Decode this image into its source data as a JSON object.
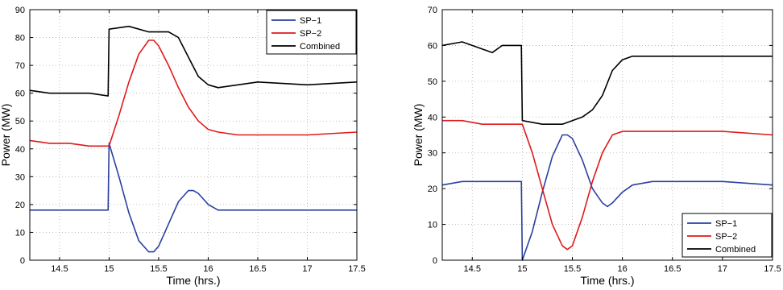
{
  "chart_data": [
    {
      "type": "line",
      "xlabel": "Time (hrs.)",
      "ylabel": "Power (MW)",
      "xlim": [
        14.2,
        17.5
      ],
      "ylim": [
        0,
        90
      ],
      "xticks": [
        14.5,
        15,
        15.5,
        16,
        16.5,
        17,
        17.5
      ],
      "xtick_labels": [
        "14.5",
        "15",
        "15.5",
        "16",
        "16.5",
        "17",
        "17.5"
      ],
      "yticks": [
        0,
        10,
        20,
        30,
        40,
        50,
        60,
        70,
        80,
        90
      ],
      "ytick_labels": [
        "0",
        "10",
        "20",
        "30",
        "40",
        "50",
        "60",
        "70",
        "80",
        "90"
      ],
      "grid": true,
      "legend_position": "top-right",
      "series": [
        {
          "name": "SP−1",
          "color": "#2b3fa0",
          "x": [
            14.2,
            14.4,
            14.6,
            14.8,
            14.99,
            15.0,
            15.1,
            15.2,
            15.3,
            15.4,
            15.45,
            15.5,
            15.6,
            15.7,
            15.8,
            15.85,
            15.9,
            16.0,
            16.1,
            16.5,
            17.0,
            17.5
          ],
          "y": [
            18,
            18,
            18,
            18,
            18,
            42,
            30,
            17,
            7,
            3,
            3,
            5,
            13,
            21,
            25,
            25,
            24,
            20,
            18,
            18,
            18,
            18
          ]
        },
        {
          "name": "SP−2",
          "color": "#e01a1a",
          "x": [
            14.2,
            14.4,
            14.6,
            14.8,
            15.0,
            15.1,
            15.2,
            15.3,
            15.4,
            15.45,
            15.5,
            15.6,
            15.7,
            15.8,
            15.9,
            16.0,
            16.1,
            16.3,
            16.5,
            17.0,
            17.5
          ],
          "y": [
            43,
            42,
            42,
            41,
            41,
            52,
            64,
            74,
            79,
            79,
            77,
            70,
            62,
            55,
            50,
            47,
            46,
            45,
            45,
            45,
            46
          ]
        },
        {
          "name": "Combined",
          "color": "#000000",
          "x": [
            14.2,
            14.4,
            14.6,
            14.8,
            14.99,
            15.0,
            15.2,
            15.4,
            15.6,
            15.7,
            15.8,
            15.9,
            16.0,
            16.1,
            16.3,
            16.5,
            17.0,
            17.5
          ],
          "y": [
            61,
            60,
            60,
            60,
            59,
            83,
            84,
            82,
            82,
            80,
            73,
            66,
            63,
            62,
            63,
            64,
            63,
            64
          ]
        }
      ]
    },
    {
      "type": "line",
      "xlabel": "Time (hrs.)",
      "ylabel": "Power (MW)",
      "xlim": [
        14.2,
        17.5
      ],
      "ylim": [
        0,
        70
      ],
      "xticks": [
        14.5,
        15,
        15.5,
        16,
        16.5,
        17,
        17.5
      ],
      "xtick_labels": [
        "14.5",
        "15",
        "15.5",
        "16",
        "16.5",
        "17",
        "17.5"
      ],
      "yticks": [
        0,
        10,
        20,
        30,
        40,
        50,
        60,
        70
      ],
      "ytick_labels": [
        "0",
        "10",
        "20",
        "30",
        "40",
        "50",
        "60",
        "70"
      ],
      "grid": true,
      "legend_position": "bottom-right",
      "series": [
        {
          "name": "SP−1",
          "color": "#2b3fa0",
          "x": [
            14.2,
            14.4,
            14.6,
            14.8,
            14.99,
            15.0,
            15.1,
            15.2,
            15.3,
            15.4,
            15.45,
            15.5,
            15.6,
            15.7,
            15.8,
            15.85,
            15.9,
            16.0,
            16.1,
            16.3,
            16.5,
            17.0,
            17.5
          ],
          "y": [
            21,
            22,
            22,
            22,
            22,
            0,
            8,
            19,
            29,
            35,
            35,
            34,
            28,
            20,
            16,
            15,
            16,
            19,
            21,
            22,
            22,
            22,
            21
          ]
        },
        {
          "name": "SP−2",
          "color": "#e01a1a",
          "x": [
            14.2,
            14.4,
            14.6,
            14.8,
            15.0,
            15.1,
            15.2,
            15.3,
            15.4,
            15.45,
            15.5,
            15.6,
            15.7,
            15.8,
            15.9,
            16.0,
            16.1,
            16.5,
            17.0,
            17.5
          ],
          "y": [
            39,
            39,
            38,
            38,
            38,
            30,
            20,
            10,
            4,
            3,
            4,
            12,
            22,
            30,
            35,
            36,
            36,
            36,
            36,
            35
          ]
        },
        {
          "name": "Combined",
          "color": "#000000",
          "x": [
            14.2,
            14.4,
            14.6,
            14.7,
            14.8,
            14.99,
            15.0,
            15.2,
            15.3,
            15.4,
            15.5,
            15.6,
            15.7,
            15.8,
            15.9,
            16.0,
            16.1,
            16.3,
            16.5,
            17.0,
            17.5
          ],
          "y": [
            60,
            61,
            59,
            58,
            60,
            60,
            39,
            38,
            38,
            38,
            39,
            40,
            42,
            46,
            53,
            56,
            57,
            57,
            57,
            57,
            57
          ]
        }
      ]
    }
  ]
}
